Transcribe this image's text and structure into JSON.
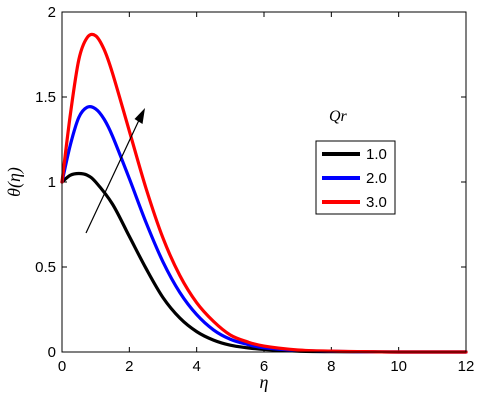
{
  "chart_data": {
    "type": "line",
    "title": "",
    "xlabel": "η",
    "ylabel": "θ(η)",
    "xlim": [
      0,
      12
    ],
    "ylim": [
      0,
      2
    ],
    "xticks": [
      "0",
      "2",
      "4",
      "6",
      "8",
      "10",
      "12"
    ],
    "yticks": [
      "0",
      "0.5",
      "1",
      "1.5",
      "2"
    ],
    "grid": false,
    "legend": {
      "title": "Qr",
      "placement": "right",
      "entries": [
        "1.0",
        "2.0",
        "3.0"
      ]
    },
    "annotation": "arrow indicating increasing Qr",
    "series": [
      {
        "name": "1.0",
        "color": "#000000",
        "x": [
          0,
          0.25,
          0.5,
          0.75,
          1,
          1.5,
          2,
          2.5,
          3,
          3.5,
          4,
          4.5,
          5,
          5.5,
          6,
          7,
          8,
          9,
          10,
          12
        ],
        "y": [
          1.0,
          1.04,
          1.05,
          1.04,
          1.0,
          0.87,
          0.68,
          0.49,
          0.32,
          0.2,
          0.12,
          0.07,
          0.04,
          0.025,
          0.015,
          0.005,
          0.002,
          0.001,
          0.0,
          0.0
        ]
      },
      {
        "name": "2.0",
        "color": "#0000ff",
        "x": [
          0,
          0.25,
          0.5,
          0.75,
          1,
          1.25,
          1.5,
          2,
          2.5,
          3,
          3.5,
          4,
          4.5,
          5,
          5.5,
          6,
          7,
          8,
          9,
          10,
          12
        ],
        "y": [
          1.0,
          1.22,
          1.38,
          1.44,
          1.43,
          1.37,
          1.27,
          1.02,
          0.76,
          0.53,
          0.35,
          0.22,
          0.13,
          0.075,
          0.045,
          0.025,
          0.01,
          0.004,
          0.001,
          0.0,
          0.0
        ]
      },
      {
        "name": "3.0",
        "color": "#ff0000",
        "x": [
          0,
          0.25,
          0.5,
          0.75,
          1,
          1.25,
          1.5,
          2,
          2.5,
          3,
          3.5,
          4,
          4.5,
          5,
          5.5,
          6,
          7,
          8,
          9,
          10,
          12
        ],
        "y": [
          1.0,
          1.4,
          1.72,
          1.85,
          1.86,
          1.78,
          1.64,
          1.3,
          0.96,
          0.67,
          0.45,
          0.29,
          0.18,
          0.1,
          0.06,
          0.035,
          0.012,
          0.005,
          0.002,
          0.0,
          0.0
        ]
      }
    ]
  }
}
